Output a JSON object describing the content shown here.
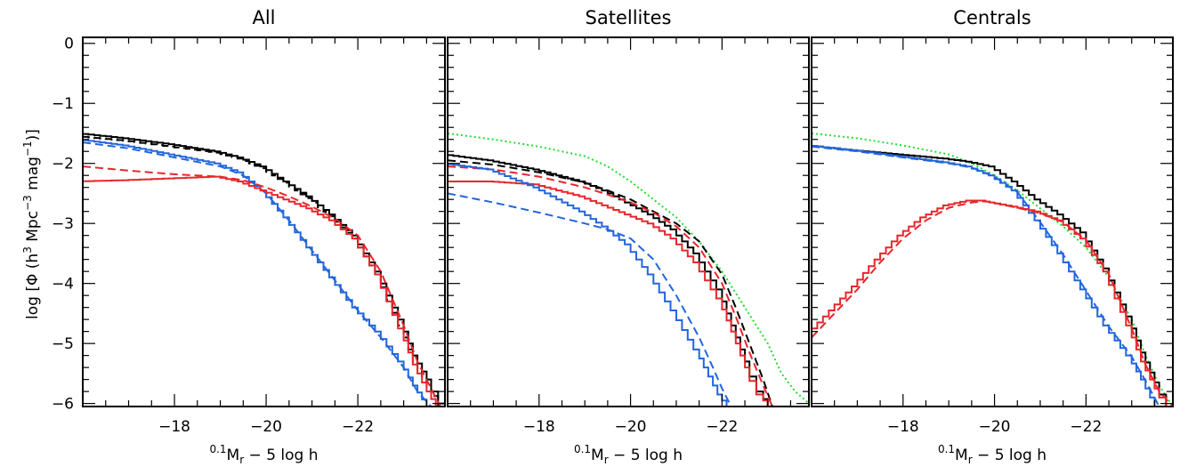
{
  "colors": {
    "black": "#000000",
    "blue": "#2266dd",
    "red": "#e8262b",
    "green": "#22dd33"
  },
  "chart_data": [
    {
      "type": "line",
      "title": "All",
      "xlabel": "0.1Mr − 5 log h",
      "xlabel_sup": "0.1",
      "xlabel_main": "M",
      "xlabel_sub": "r",
      "xlabel_rest": " − 5 log h",
      "ylabel": "log [Φ (h3 Mpc−3 mag−1)]",
      "ylabel_parts": {
        "a": "log [Φ (h",
        "sup1": "3",
        "b": " Mpc",
        "sup2": "−3",
        "c": " mag",
        "sup3": "−1",
        "d": ")]"
      },
      "xlim": [
        -16.0,
        -23.9
      ],
      "ylim": [
        -6.05,
        0.1
      ],
      "xticks": [
        "-18",
        "-20",
        "-22"
      ],
      "yticks": [
        "0",
        "-1",
        "-2",
        "-3",
        "-4",
        "-5",
        "-6"
      ],
      "series": [
        {
          "color": "black",
          "dash": "solid",
          "step": true,
          "x": [
            -16.0,
            -17.0,
            -18.0,
            -19.0,
            -19.5,
            -20.0,
            -20.5,
            -21.0,
            -21.5,
            -22.0,
            -22.5,
            -23.0,
            -23.3,
            -23.6,
            -23.9
          ],
          "y": [
            -1.5,
            -1.58,
            -1.68,
            -1.8,
            -1.9,
            -2.05,
            -2.3,
            -2.55,
            -2.85,
            -3.2,
            -3.8,
            -4.6,
            -5.2,
            -5.6,
            -6.0
          ]
        },
        {
          "color": "black",
          "dash": "dashed",
          "step": true,
          "x": [
            -16.0,
            -17.0,
            -18.0,
            -19.0,
            -19.5,
            -20.0,
            -20.5,
            -21.0,
            -21.5,
            -22.0,
            -22.5,
            -23.0,
            -23.3,
            -23.6,
            -23.9
          ],
          "y": [
            -1.55,
            -1.62,
            -1.72,
            -1.82,
            -1.92,
            -2.08,
            -2.32,
            -2.58,
            -2.88,
            -3.25,
            -3.85,
            -4.7,
            -5.3,
            -5.7,
            -6.05
          ]
        },
        {
          "color": "blue",
          "dash": "solid",
          "step": true,
          "x": [
            -16.0,
            -17.0,
            -18.0,
            -19.0,
            -19.5,
            -20.0,
            -20.5,
            -21.0,
            -21.5,
            -22.0,
            -22.5,
            -23.0,
            -23.3,
            -23.6
          ],
          "y": [
            -1.6,
            -1.7,
            -1.85,
            -2.0,
            -2.15,
            -2.45,
            -2.9,
            -3.4,
            -3.9,
            -4.4,
            -4.8,
            -5.3,
            -5.7,
            -6.05
          ]
        },
        {
          "color": "blue",
          "dash": "dashed",
          "step": false,
          "x": [
            -16.0,
            -17.0,
            -18.0,
            -19.0,
            -19.5,
            -20.0,
            -20.5,
            -21.0,
            -21.5,
            -22.0,
            -22.5,
            -23.0,
            -23.3,
            -23.6
          ],
          "y": [
            -1.65,
            -1.75,
            -1.9,
            -2.05,
            -2.2,
            -2.5,
            -2.95,
            -3.45,
            -3.95,
            -4.45,
            -4.9,
            -5.4,
            -5.8,
            -6.05
          ]
        },
        {
          "color": "red",
          "dash": "solid",
          "step": true,
          "x": [
            -16.0,
            -17.0,
            -18.0,
            -19.0,
            -19.5,
            -20.0,
            -20.5,
            -21.0,
            -21.5,
            -22.0,
            -22.5,
            -23.0,
            -23.3,
            -23.6,
            -23.8
          ],
          "y": [
            -2.3,
            -2.28,
            -2.25,
            -2.22,
            -2.3,
            -2.45,
            -2.6,
            -2.75,
            -2.95,
            -3.25,
            -3.85,
            -4.75,
            -5.35,
            -5.8,
            -6.05
          ]
        },
        {
          "color": "red",
          "dash": "dashed",
          "step": false,
          "x": [
            -16.0,
            -17.0,
            -18.0,
            -19.0,
            -19.5,
            -20.0,
            -20.5,
            -21.0,
            -21.5,
            -22.0,
            -22.5,
            -23.0,
            -23.3,
            -23.6,
            -23.8
          ],
          "y": [
            -2.05,
            -2.12,
            -2.18,
            -2.22,
            -2.28,
            -2.4,
            -2.55,
            -2.72,
            -2.92,
            -3.2,
            -3.8,
            -4.7,
            -5.3,
            -5.75,
            -6.05
          ]
        }
      ]
    },
    {
      "type": "line",
      "title": "Satellites",
      "xlabel": "0.1Mr − 5 log h",
      "xlabel_sup": "0.1",
      "xlabel_main": "M",
      "xlabel_sub": "r",
      "xlabel_rest": " − 5 log h",
      "xlim": [
        -16.0,
        -23.9
      ],
      "ylim": [
        -6.05,
        0.1
      ],
      "xticks": [
        "-18",
        "-20",
        "-22"
      ],
      "series": [
        {
          "color": "green",
          "dash": "dotted",
          "step": false,
          "x": [
            -16.0,
            -17.0,
            -18.0,
            -19.0,
            -19.5,
            -20.0,
            -20.5,
            -21.0,
            -21.5,
            -22.0,
            -22.5,
            -23.0,
            -23.3,
            -23.6,
            -23.9
          ],
          "y": [
            -1.5,
            -1.6,
            -1.72,
            -1.88,
            -2.05,
            -2.3,
            -2.6,
            -2.9,
            -3.3,
            -3.8,
            -4.4,
            -5.0,
            -5.5,
            -5.8,
            -6.0
          ]
        },
        {
          "color": "black",
          "dash": "solid",
          "step": true,
          "x": [
            -16.0,
            -17.0,
            -18.0,
            -19.0,
            -19.5,
            -20.0,
            -20.5,
            -21.0,
            -21.5,
            -22.0,
            -22.3,
            -22.6,
            -22.9,
            -23.1
          ],
          "y": [
            -1.85,
            -1.95,
            -2.1,
            -2.3,
            -2.45,
            -2.65,
            -2.85,
            -3.1,
            -3.5,
            -4.1,
            -4.7,
            -5.3,
            -5.8,
            -6.05
          ]
        },
        {
          "color": "black",
          "dash": "dashed",
          "step": false,
          "x": [
            -16.0,
            -17.0,
            -18.0,
            -19.0,
            -19.5,
            -20.0,
            -20.5,
            -21.0,
            -21.5,
            -22.0,
            -22.3,
            -22.6,
            -22.9,
            -23.1
          ],
          "y": [
            -1.95,
            -2.02,
            -2.15,
            -2.32,
            -2.45,
            -2.6,
            -2.8,
            -3.0,
            -3.3,
            -3.85,
            -4.4,
            -5.0,
            -5.6,
            -6.05
          ]
        },
        {
          "color": "red",
          "dash": "solid",
          "step": true,
          "x": [
            -16.0,
            -17.0,
            -18.0,
            -19.0,
            -19.5,
            -20.0,
            -20.5,
            -21.0,
            -21.5,
            -22.0,
            -22.3,
            -22.6,
            -22.9,
            -23.1
          ],
          "y": [
            -2.3,
            -2.3,
            -2.35,
            -2.55,
            -2.7,
            -2.85,
            -3.0,
            -3.25,
            -3.65,
            -4.25,
            -4.8,
            -5.4,
            -5.85,
            -6.05
          ]
        },
        {
          "color": "red",
          "dash": "dashed",
          "step": false,
          "x": [
            -16.0,
            -17.0,
            -18.0,
            -19.0,
            -19.5,
            -20.0,
            -20.5,
            -21.0,
            -21.5,
            -22.0,
            -22.3,
            -22.6,
            -22.9,
            -23.1
          ],
          "y": [
            -2.05,
            -2.1,
            -2.22,
            -2.4,
            -2.52,
            -2.65,
            -2.82,
            -3.05,
            -3.4,
            -4.0,
            -4.55,
            -5.15,
            -5.7,
            -6.05
          ]
        },
        {
          "color": "blue",
          "dash": "solid",
          "step": true,
          "x": [
            -16.0,
            -17.0,
            -18.0,
            -19.0,
            -19.5,
            -20.0,
            -20.5,
            -21.0,
            -21.5,
            -21.8,
            -22.0,
            -22.2
          ],
          "y": [
            -2.0,
            -2.1,
            -2.4,
            -2.8,
            -3.05,
            -3.35,
            -3.85,
            -4.45,
            -5.1,
            -5.55,
            -5.85,
            -6.05
          ]
        },
        {
          "color": "blue",
          "dash": "dashed",
          "step": false,
          "x": [
            -16.0,
            -17.0,
            -18.0,
            -19.0,
            -19.5,
            -20.0,
            -20.5,
            -21.0,
            -21.5,
            -21.8,
            -22.0,
            -22.2
          ],
          "y": [
            -2.5,
            -2.65,
            -2.82,
            -3.0,
            -3.1,
            -3.25,
            -3.6,
            -4.2,
            -4.9,
            -5.4,
            -5.75,
            -6.05
          ]
        }
      ]
    },
    {
      "type": "line",
      "title": "Centrals",
      "xlabel": "0.1Mr − 5 log h",
      "xlabel_sup": "0.1",
      "xlabel_main": "M",
      "xlabel_sub": "r",
      "xlabel_rest": " − 5 log h",
      "xlim": [
        -16.0,
        -23.9
      ],
      "ylim": [
        -6.05,
        0.1
      ],
      "xticks": [
        "-18",
        "-20",
        "-22"
      ],
      "series": [
        {
          "color": "green",
          "dash": "dotted",
          "step": false,
          "x": [
            -16.0,
            -17.0,
            -18.0,
            -19.0,
            -19.5,
            -20.0,
            -20.5,
            -21.0,
            -21.5,
            -22.0,
            -22.5,
            -23.0,
            -23.3,
            -23.6,
            -23.9
          ],
          "y": [
            -1.5,
            -1.58,
            -1.7,
            -1.85,
            -2.0,
            -2.2,
            -2.45,
            -2.75,
            -3.05,
            -3.4,
            -3.9,
            -4.6,
            -5.2,
            -5.7,
            -6.05
          ]
        },
        {
          "color": "black",
          "dash": "solid",
          "step": true,
          "x": [
            -16.0,
            -17.0,
            -18.0,
            -19.0,
            -19.5,
            -20.0,
            -20.5,
            -21.0,
            -21.5,
            -22.0,
            -22.5,
            -23.0,
            -23.3,
            -23.6,
            -23.9
          ],
          "y": [
            -1.7,
            -1.78,
            -1.85,
            -1.92,
            -1.97,
            -2.05,
            -2.3,
            -2.6,
            -2.85,
            -3.15,
            -3.75,
            -4.55,
            -5.15,
            -5.65,
            -6.05
          ]
        },
        {
          "color": "blue",
          "dash": "solid",
          "step": true,
          "x": [
            -16.0,
            -17.0,
            -18.0,
            -19.0,
            -19.5,
            -20.0,
            -20.5,
            -21.0,
            -21.5,
            -22.0,
            -22.5,
            -23.0,
            -23.3,
            -23.6
          ],
          "y": [
            -1.7,
            -1.78,
            -1.88,
            -1.98,
            -2.05,
            -2.2,
            -2.45,
            -2.95,
            -3.5,
            -4.1,
            -4.7,
            -5.2,
            -5.6,
            -6.05
          ]
        },
        {
          "color": "blue",
          "dash": "dashed",
          "step": false,
          "x": [
            -16.0,
            -17.0,
            -18.0,
            -19.0,
            -19.5,
            -20.0,
            -20.5,
            -21.0,
            -21.5,
            -22.0,
            -22.5,
            -23.0,
            -23.3,
            -23.6
          ],
          "y": [
            -1.72,
            -1.8,
            -1.9,
            -2.0,
            -2.07,
            -2.22,
            -2.48,
            -2.98,
            -3.52,
            -4.12,
            -4.72,
            -5.22,
            -5.62,
            -6.05
          ]
        },
        {
          "color": "red",
          "dash": "solid",
          "step": true,
          "x": [
            -16.0,
            -16.5,
            -17.0,
            -17.5,
            -18.0,
            -18.5,
            -19.0,
            -19.5,
            -19.8,
            -20.0,
            -20.5,
            -21.0,
            -21.5,
            -22.0,
            -22.5,
            -23.0,
            -23.3,
            -23.6,
            -23.9
          ],
          "y": [
            -4.85,
            -4.45,
            -4.05,
            -3.6,
            -3.2,
            -2.9,
            -2.7,
            -2.62,
            -2.62,
            -2.65,
            -2.72,
            -2.8,
            -2.95,
            -3.25,
            -3.8,
            -4.7,
            -5.3,
            -5.75,
            -6.05
          ]
        },
        {
          "color": "red",
          "dash": "dashed",
          "step": false,
          "x": [
            -16.0,
            -16.5,
            -17.0,
            -17.5,
            -18.0,
            -18.5,
            -19.0,
            -19.5,
            -19.8,
            -20.0,
            -20.5,
            -21.0,
            -21.5,
            -22.0,
            -22.5,
            -23.0,
            -23.3,
            -23.6,
            -23.9
          ],
          "y": [
            -4.9,
            -4.5,
            -4.1,
            -3.65,
            -3.25,
            -2.95,
            -2.74,
            -2.65,
            -2.63,
            -2.66,
            -2.74,
            -2.83,
            -2.98,
            -3.28,
            -3.85,
            -4.75,
            -5.35,
            -5.8,
            -6.05
          ]
        }
      ]
    }
  ]
}
